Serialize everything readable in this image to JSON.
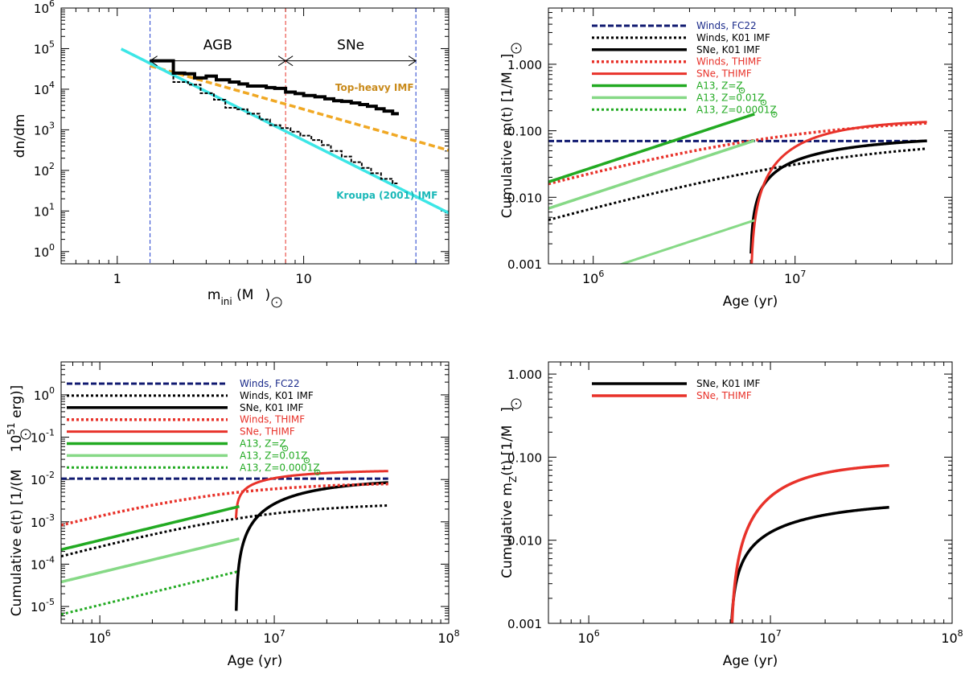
{
  "chart_data": [
    {
      "id": "imf",
      "type": "line",
      "xscale": "log",
      "yscale": "log",
      "xlim": [
        0.5,
        60
      ],
      "ylim": [
        0.5,
        1000000
      ],
      "xlabel": "m",
      "xlabel_sub": "ini",
      "xlabel_unit_open": " (M",
      "xlabel_unit_close": ")",
      "ylabel": "dn/dm",
      "xticks": [
        {
          "v": 1,
          "label": "1"
        },
        {
          "v": 10,
          "label": "10"
        }
      ],
      "yticks": [
        {
          "v": 1,
          "base": "10",
          "exp": "0"
        },
        {
          "v": 10,
          "base": "10",
          "exp": "1"
        },
        {
          "v": 100,
          "base": "10",
          "exp": "2"
        },
        {
          "v": 1000,
          "base": "10",
          "exp": "3"
        },
        {
          "v": 10000,
          "base": "10",
          "exp": "4"
        },
        {
          "v": 100000,
          "base": "10",
          "exp": "5"
        },
        {
          "v": 1000000,
          "base": "10",
          "exp": "6"
        }
      ],
      "vlines": [
        {
          "x": 1.5,
          "color": "#1f3fcc"
        },
        {
          "x": 8,
          "color": "#e8322a"
        },
        {
          "x": 40,
          "color": "#1f3fcc"
        }
      ],
      "ranges": [
        {
          "label": "AGB",
          "x1": 1.5,
          "x2": 8,
          "y": 50000
        },
        {
          "label": "SNe",
          "x1": 8,
          "x2": 40,
          "y": 50000
        }
      ],
      "series": [
        {
          "name": "Top-heavy IMF",
          "kind": "powerlaw",
          "color": "#f0a824",
          "dash": "8,4",
          "width": 3.5,
          "x0": 1,
          "y0": 64000,
          "slope": -1.3,
          "xmin": 1.5,
          "xmax": 60
        },
        {
          "name": "Kroupa (2001) IMF",
          "kind": "powerlaw",
          "color": "#3ce6e6",
          "dash": "",
          "width": 3.5,
          "x0": 1,
          "y0": 110000,
          "slope": -2.3,
          "xmin": 1.05,
          "xmax": 60
        },
        {
          "name": "Top-heavy sample",
          "kind": "step",
          "color": "#000000",
          "dash": "",
          "width": 4,
          "x": [
            1.5,
            2.0,
            2.3,
            2.6,
            3.0,
            3.4,
            4.0,
            4.5,
            5.0,
            5.6,
            6.3,
            7.0,
            8.0,
            9.0,
            10.0,
            11.5,
            13.0,
            14.5,
            16.0,
            18.0,
            20.0,
            22.0,
            24.5,
            27.0,
            30.0
          ],
          "y": [
            50000,
            25000,
            24000,
            19000,
            21000,
            17000,
            15000,
            13500,
            12000,
            12000,
            11000,
            10500,
            8500,
            7800,
            7000,
            6500,
            5800,
            5200,
            5000,
            4600,
            4200,
            3800,
            3300,
            2900,
            2500
          ]
        },
        {
          "name": "Kroupa sample",
          "kind": "step",
          "color": "#000000",
          "dash": "4,2",
          "width": 2,
          "x": [
            1.5,
            2.0,
            2.4,
            2.8,
            3.3,
            3.8,
            4.4,
            5.0,
            5.8,
            6.6,
            7.5,
            8.5,
            9.6,
            11.0,
            12.5,
            14.0,
            16.0,
            18.0,
            20.5,
            23.0,
            26.0,
            30.0
          ],
          "y": [
            50000,
            15000,
            13000,
            8000,
            5500,
            3500,
            3200,
            2500,
            1800,
            1300,
            1100,
            900,
            720,
            560,
            420,
            300,
            220,
            160,
            115,
            85,
            62,
            48
          ]
        }
      ],
      "annotations": [
        {
          "text": "Top-heavy IMF",
          "x": 24,
          "y": 9000,
          "color": "#c98a1a",
          "anchor": "middle"
        },
        {
          "text": "Kroupa (2001) IMF",
          "x": 28,
          "y": 20,
          "color": "#1ab8b8",
          "anchor": "middle"
        }
      ]
    },
    {
      "id": "mass",
      "type": "line",
      "xscale": "log",
      "yscale": "log",
      "xlim": [
        600000,
        60000000
      ],
      "ylim": [
        0.001,
        7
      ],
      "xlabel": "Age (yr)",
      "ylabel_pre": "Cumulative  m(t)  [1/M",
      "ylabel_post": "]",
      "xticks": [
        {
          "v": 1000000,
          "base": "10",
          "exp": "6"
        },
        {
          "v": 10000000,
          "base": "10",
          "exp": "7"
        }
      ],
      "yticks": [
        {
          "v": 0.001,
          "label": "0.001"
        },
        {
          "v": 0.01,
          "label": "0.010"
        },
        {
          "v": 0.1,
          "label": "0.100"
        },
        {
          "v": 1,
          "label": "1.000"
        }
      ],
      "series": [
        {
          "name": "Winds, FC22",
          "kind": "powerlaw",
          "color": "#101a70",
          "dash": "7,3",
          "width": 3,
          "x0": 1000000,
          "y0": 0.07,
          "slope": 0,
          "xmin": 600000,
          "xmax": 45000000
        },
        {
          "name": "Winds, K01 IMF",
          "kind": "rise",
          "color": "#000000",
          "dash": "3,3",
          "width": 3,
          "A": 0.075,
          "tau": 15000000,
          "p": 0.85,
          "xmin": 600000,
          "xmax": 45000000
        },
        {
          "name": "SNe, K01 IMF",
          "kind": "sn",
          "color": "#000000",
          "dash": "",
          "width": 3.5,
          "A": 0.085,
          "t0": 6000000,
          "p": 0.85,
          "xmin": 6050000,
          "xmax": 45000000
        },
        {
          "name": "Winds, THIMF",
          "kind": "rise",
          "color": "#e8322a",
          "dash": "3,3",
          "width": 3.5,
          "A": 0.16,
          "tau": 8000000,
          "p": 0.85,
          "xmin": 600000,
          "xmax": 45000000
        },
        {
          "name": "SNe, THIMF",
          "kind": "sn",
          "color": "#e8322a",
          "dash": "",
          "width": 3,
          "A": 0.15,
          "t0": 6000000,
          "p": 1.2,
          "xmin": 6030000,
          "xmax": 45000000
        },
        {
          "name": "A13, Z=Z",
          "kind": "powerlaw",
          "color": "#22aa22",
          "dash": "",
          "width": 3.5,
          "x0": 600000,
          "y0": 0.017,
          "slope": 1,
          "xmin": 600000,
          "xmax": 6300000
        },
        {
          "name": "A13, Z=0.01Z",
          "kind": "powerlaw",
          "color": "#86d986",
          "dash": "",
          "width": 3.5,
          "x0": 600000,
          "y0": 0.0068,
          "slope": 1,
          "xmin": 600000,
          "xmax": 6300000
        },
        {
          "name": "A13, Z=0.0001Z",
          "kind": "powerlaw",
          "color": "#86d986",
          "dash": "",
          "width": 3,
          "x0": 600000,
          "y0": 0.00043,
          "slope": 1,
          "xmin": 600000,
          "xmax": 6300000
        }
      ],
      "legend": [
        {
          "text": "Winds, FC22",
          "color": "#1a2a8a",
          "line": "#101a70",
          "dash": "7,3",
          "width": 3,
          "sun": false
        },
        {
          "text": "Winds, K01 IMF",
          "color": "#000000",
          "line": "#000000",
          "dash": "3,3",
          "width": 3,
          "sun": false
        },
        {
          "text": "SNe, K01 IMF",
          "color": "#000000",
          "line": "#000000",
          "dash": "",
          "width": 3.5,
          "sun": false
        },
        {
          "text": "Winds, THIMF",
          "color": "#e8322a",
          "line": "#e8322a",
          "dash": "3,3",
          "width": 3.5,
          "sun": false
        },
        {
          "text": "SNe, THIMF",
          "color": "#e8322a",
          "line": "#e8322a",
          "dash": "",
          "width": 3,
          "sun": false
        },
        {
          "text": "A13, Z=Z",
          "color": "#22aa22",
          "line": "#22aa22",
          "dash": "",
          "width": 3.5,
          "sun": true
        },
        {
          "text": "A13, Z=0.01Z",
          "color": "#22aa22",
          "line": "#86d986",
          "dash": "",
          "width": 3.5,
          "sun": true
        },
        {
          "text": "A13, Z=0.0001Z",
          "color": "#22aa22",
          "line": "#22aa22",
          "dash": "3,3",
          "width": 3,
          "sun": true
        }
      ]
    },
    {
      "id": "energy",
      "type": "line",
      "xscale": "log",
      "yscale": "log",
      "xlim": [
        600000,
        100000000
      ],
      "ylim": [
        4e-06,
        6
      ],
      "xlabel": "Age (yr)",
      "ylabel_pre": "Cumulative  e(t)  [1/(M",
      "ylabel_mid": " 10",
      "ylabel_exp": "51",
      "ylabel_post": " erg)]",
      "xticks": [
        {
          "v": 1000000,
          "base": "10",
          "exp": "6"
        },
        {
          "v": 10000000,
          "base": "10",
          "exp": "7"
        },
        {
          "v": 100000000,
          "base": "10",
          "exp": "8"
        }
      ],
      "yticks": [
        {
          "v": 1e-05,
          "base": "10",
          "exp": "-5"
        },
        {
          "v": 0.0001,
          "base": "10",
          "exp": "-4"
        },
        {
          "v": 0.001,
          "base": "10",
          "exp": "-3"
        },
        {
          "v": 0.01,
          "base": "10",
          "exp": "-2"
        },
        {
          "v": 0.1,
          "base": "10",
          "exp": "-1"
        },
        {
          "v": 1,
          "base": "10",
          "exp": "0"
        }
      ],
      "series": [
        {
          "name": "Winds, FC22",
          "kind": "powerlaw",
          "color": "#101a70",
          "dash": "7,3",
          "width": 3,
          "x0": 1000000,
          "y0": 0.0105,
          "slope": 0,
          "xmin": 600000,
          "xmax": 45000000
        },
        {
          "name": "Winds, K01 IMF",
          "kind": "rise",
          "color": "#000000",
          "dash": "3,3",
          "width": 3,
          "A": 0.0028,
          "tau": 8000000,
          "p": 1.1,
          "xmin": 600000,
          "xmax": 45000000
        },
        {
          "name": "SNe, K01 IMF",
          "kind": "snpow",
          "color": "#000000",
          "dash": "",
          "width": 3.5,
          "A": 0.0105,
          "t0": 6000000,
          "p": 1.5,
          "q": 1.5,
          "xmin": 6050000,
          "xmax": 45000000
        },
        {
          "name": "Winds, THIMF",
          "kind": "rise",
          "color": "#e8322a",
          "dash": "3,3",
          "width": 3.5,
          "A": 0.0085,
          "tau": 4500000,
          "p": 1.1,
          "xmin": 600000,
          "xmax": 45000000
        },
        {
          "name": "SNe, THIMF",
          "kind": "snpow",
          "color": "#e8322a",
          "dash": "",
          "width": 3,
          "A": 0.017,
          "t0": 6000000,
          "p": 0.5,
          "q": 1.1,
          "xmin": 6030000,
          "xmax": 45000000
        },
        {
          "name": "A13, Z=Z",
          "kind": "powerlaw",
          "color": "#22aa22",
          "dash": "",
          "width": 3.5,
          "x0": 600000,
          "y0": 0.00022,
          "slope": 1,
          "xmin": 600000,
          "xmax": 6300000
        },
        {
          "name": "A13, Z=0.01Z",
          "kind": "powerlaw",
          "color": "#86d986",
          "dash": "",
          "width": 3.5,
          "x0": 600000,
          "y0": 3.8e-05,
          "slope": 1,
          "xmin": 600000,
          "xmax": 6300000
        },
        {
          "name": "A13, Z=0.0001Z",
          "kind": "powerlaw",
          "color": "#22aa22",
          "dash": "3,3",
          "width": 3,
          "x0": 600000,
          "y0": 6.5e-06,
          "slope": 1,
          "xmin": 600000,
          "xmax": 6300000
        }
      ],
      "legend": [
        {
          "text": "Winds, FC22",
          "color": "#1a2a8a",
          "line": "#101a70",
          "dash": "7,3",
          "width": 3,
          "sun": false
        },
        {
          "text": "Winds, K01 IMF",
          "color": "#000000",
          "line": "#000000",
          "dash": "3,3",
          "width": 3,
          "sun": false
        },
        {
          "text": "SNe, K01 IMF",
          "color": "#000000",
          "line": "#000000",
          "dash": "",
          "width": 3.5,
          "sun": false
        },
        {
          "text": "Winds, THIMF",
          "color": "#e8322a",
          "line": "#e8322a",
          "dash": "3,3",
          "width": 3.5,
          "sun": false
        },
        {
          "text": "SNe, THIMF",
          "color": "#e8322a",
          "line": "#e8322a",
          "dash": "",
          "width": 3,
          "sun": false
        },
        {
          "text": "A13, Z=Z",
          "color": "#22aa22",
          "line": "#22aa22",
          "dash": "",
          "width": 3.5,
          "sun": true
        },
        {
          "text": "A13, Z=0.01Z",
          "color": "#22aa22",
          "line": "#86d986",
          "dash": "",
          "width": 3.5,
          "sun": true
        },
        {
          "text": "A13, Z=0.0001Z",
          "color": "#22aa22",
          "line": "#22aa22",
          "dash": "3,3",
          "width": 3,
          "sun": true
        }
      ]
    },
    {
      "id": "metals",
      "type": "line",
      "xscale": "log",
      "yscale": "log",
      "xlim": [
        600000,
        100000000
      ],
      "ylim": [
        0.001,
        1.4
      ],
      "xlabel": "Age (yr)",
      "ylabel_pre": "Cumulative  m",
      "ylabel_sub": "Z",
      "ylabel_post": "(t)  [1/M",
      "ylabel_end": "]",
      "xticks": [
        {
          "v": 1000000,
          "base": "10",
          "exp": "6"
        },
        {
          "v": 10000000,
          "base": "10",
          "exp": "7"
        },
        {
          "v": 100000000,
          "base": "10",
          "exp": "8"
        }
      ],
      "yticks": [
        {
          "v": 0.001,
          "label": "0.001"
        },
        {
          "v": 0.01,
          "label": "0.010"
        },
        {
          "v": 0.1,
          "label": "0.100"
        },
        {
          "v": 1,
          "label": "1.000"
        }
      ],
      "series": [
        {
          "name": "SNe, K01 IMF",
          "kind": "sn",
          "color": "#000000",
          "dash": "",
          "width": 3.5,
          "A": 0.03,
          "t0": 6000000,
          "p": 0.85,
          "xmin": 6080000,
          "xmax": 45000000
        },
        {
          "name": "SNe, THIMF",
          "kind": "sn",
          "color": "#e8322a",
          "dash": "",
          "width": 3.5,
          "A": 0.088,
          "t0": 6000000,
          "p": 1.2,
          "xmin": 6030000,
          "xmax": 45000000
        }
      ],
      "legend": [
        {
          "text": "SNe, K01 IMF",
          "color": "#000000",
          "line": "#000000",
          "dash": "",
          "width": 3.5,
          "sun": false
        },
        {
          "text": "SNe, THIMF",
          "color": "#e8322a",
          "line": "#e8322a",
          "dash": "",
          "width": 3.5,
          "sun": false
        }
      ]
    }
  ]
}
